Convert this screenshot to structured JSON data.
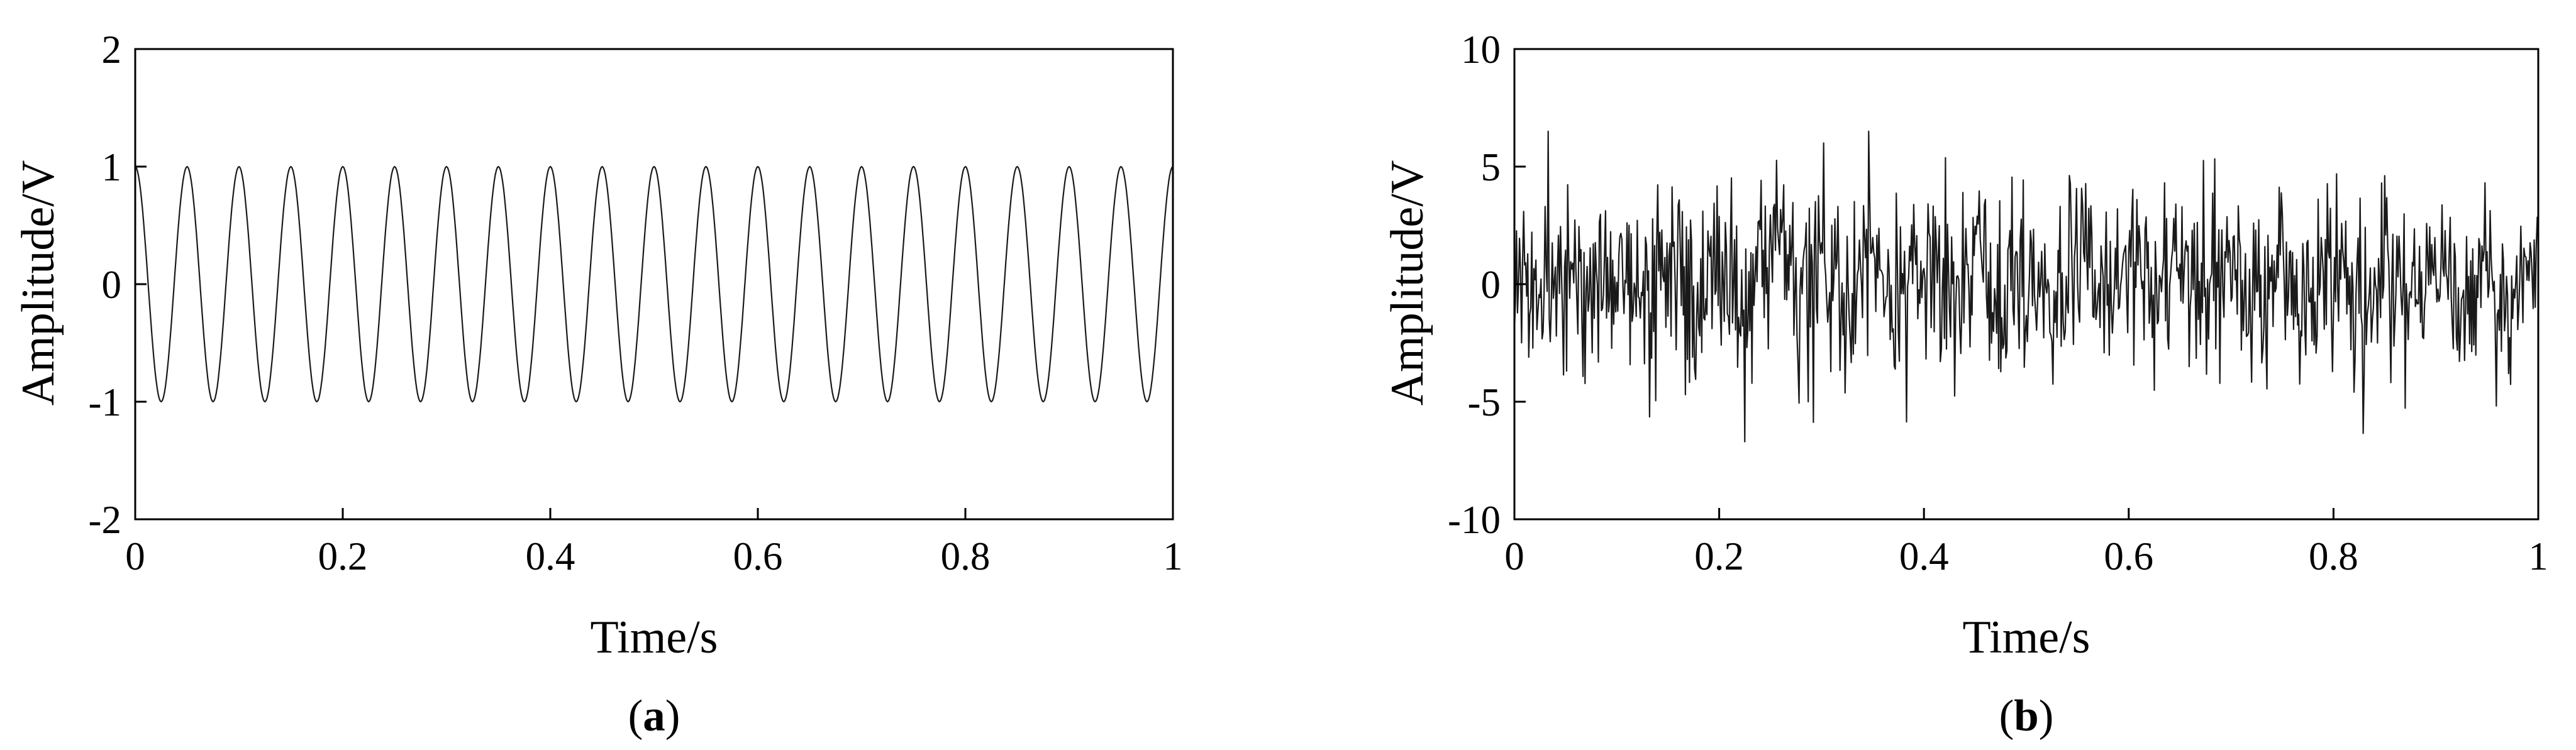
{
  "chart_data": [
    {
      "type": "line",
      "panel_label": "a",
      "title": "",
      "xlabel": "Time/s",
      "ylabel": "Amplitude/V",
      "xlim": [
        0,
        1
      ],
      "ylim": [
        -2,
        2
      ],
      "xticks": [
        0,
        0.2,
        0.4,
        0.6,
        0.8,
        1
      ],
      "xtick_labels": [
        "0",
        "0.2",
        "0.4",
        "0.6",
        "0.8",
        "1"
      ],
      "yticks": [
        -2,
        -1,
        0,
        1,
        2
      ],
      "ytick_labels": [
        "-2",
        "-1",
        "0",
        "1",
        "2"
      ],
      "grid": false,
      "series": [
        {
          "waveform": "cosine",
          "amplitude": 1,
          "frequency_hz": 20,
          "samples": 1000,
          "color": "#1a1a1a"
        }
      ]
    },
    {
      "type": "line",
      "panel_label": "b",
      "title": "",
      "xlabel": "Time/s",
      "ylabel": "Amplitude/V",
      "xlim": [
        0,
        1
      ],
      "ylim": [
        -10,
        10
      ],
      "xticks": [
        0,
        0.2,
        0.4,
        0.6,
        0.8,
        1
      ],
      "xtick_labels": [
        "0",
        "0.2",
        "0.4",
        "0.6",
        "0.8",
        "1"
      ],
      "yticks": [
        -10,
        -5,
        0,
        5,
        10
      ],
      "ytick_labels": [
        "-10",
        "-5",
        "0",
        "5",
        "10"
      ],
      "grid": false,
      "series": [
        {
          "waveform": "noisy cosine",
          "amplitude": 1,
          "frequency_hz": 20,
          "noise_std": 2,
          "samples": 1000,
          "y_range_observed": [
            -6.7,
            6.5
          ],
          "color": "#1a1a1a"
        }
      ]
    }
  ]
}
